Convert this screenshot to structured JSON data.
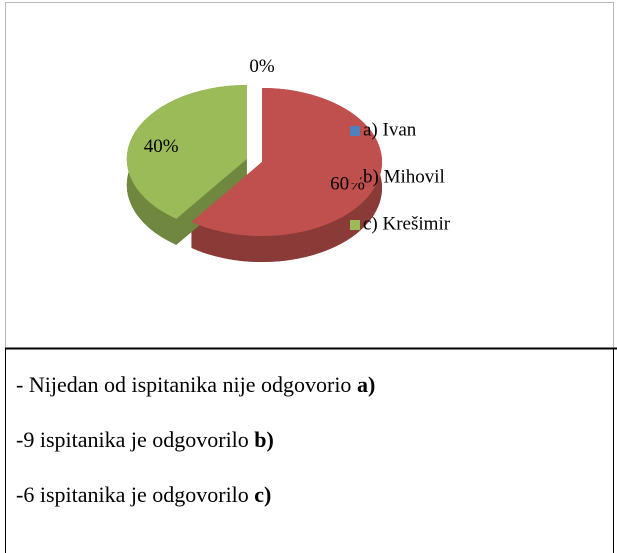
{
  "chart_data": {
    "type": "pie",
    "categories": [
      "a) Ivan",
      "b) Mihovil",
      "c) Krešimir"
    ],
    "values": [
      0,
      60,
      40
    ],
    "value_labels": [
      "0%",
      "60%",
      "40%"
    ],
    "colors": [
      "#4f81bd",
      "#c0504d",
      "#9bbb59"
    ],
    "legend": "right"
  },
  "text": {
    "lines": [
      {
        "text": "- Nijedan od ispitanika nije odgovorio ",
        "bold": "a)"
      },
      {
        "text": "-9 ispitanika je odgovorilo ",
        "bold": "b)"
      },
      {
        "text": "-6 ispitanika je odgovorilo ",
        "bold": "c)"
      }
    ]
  }
}
